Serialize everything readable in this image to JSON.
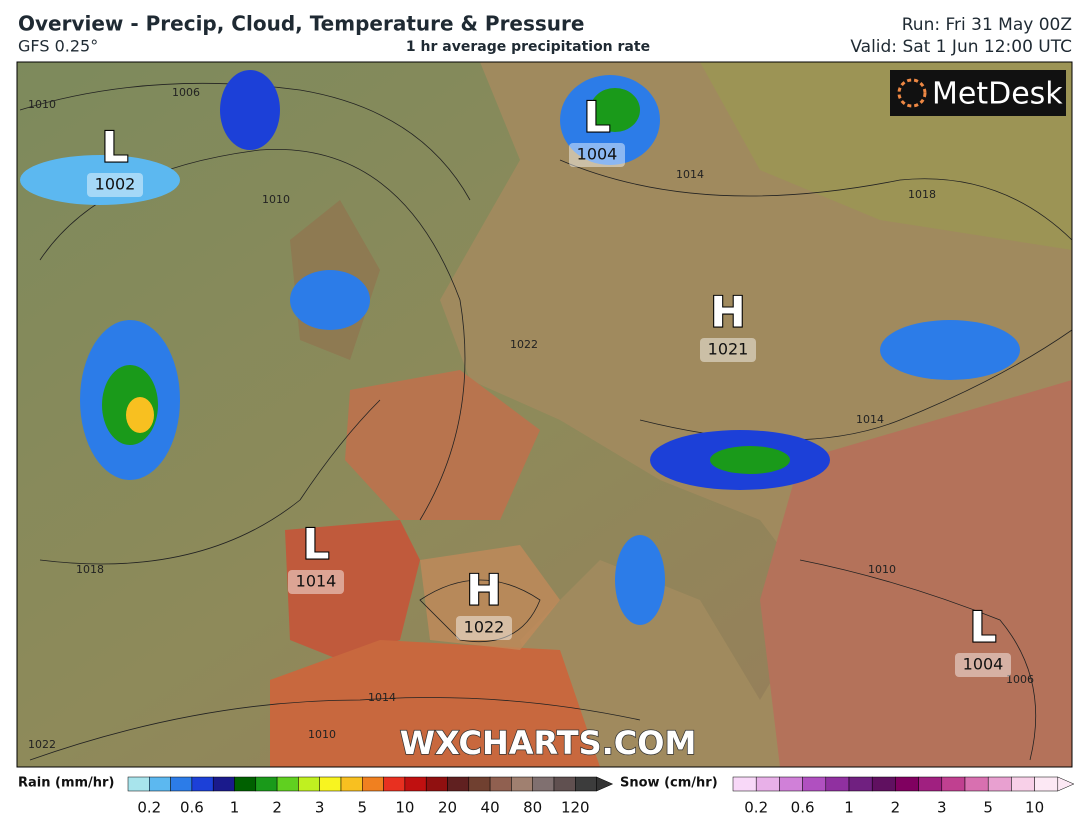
{
  "header": {
    "title": "Overview - Precip, Cloud, Temperature & Pressure",
    "model": "GFS 0.25°",
    "subtitle": "1 hr average precipitation rate",
    "run": "Run: Fri 31 May 00Z",
    "valid": "Valid: Sat 1 Jun 12:00 UTC"
  },
  "logo": "MetDesk",
  "watermark": "WXCHARTS.COM",
  "pressure_systems": [
    {
      "letter": "L",
      "value": 1002
    },
    {
      "letter": "L",
      "value": 1004
    },
    {
      "letter": "H",
      "value": 1021
    },
    {
      "letter": "L",
      "value": 1014
    },
    {
      "letter": "H",
      "value": 1022
    },
    {
      "letter": "L",
      "value": 1004
    }
  ],
  "isobar_labels": [
    "1010",
    "1006",
    "1010",
    "1014",
    "1018",
    "1022",
    "1014",
    "1010",
    "1006",
    "1018",
    "1014",
    "1010",
    "1022"
  ],
  "rain_legend": {
    "label": "Rain (mm/hr)",
    "ticks": [
      0.2,
      0.6,
      1,
      2,
      3,
      5,
      10,
      20,
      40,
      80,
      120
    ],
    "colors": [
      "#a8e4ec",
      "#5cb8f0",
      "#2c7ce8",
      "#1c40d8",
      "#1a1a8c",
      "#006000",
      "#1a9a1a",
      "#60d020",
      "#c0f020",
      "#f8f420",
      "#f8c020",
      "#f08020",
      "#e83020",
      "#c01010",
      "#901010",
      "#602020",
      "#704030",
      "#906050",
      "#a08070",
      "#807070",
      "#605050",
      "#3c3c3c"
    ]
  },
  "snow_legend": {
    "label": "Snow (cm/hr)",
    "ticks": [
      0.2,
      0.6,
      1,
      2,
      3,
      5,
      10
    ],
    "colors": [
      "#f8d8f8",
      "#e8b0e8",
      "#d080d8",
      "#b050c0",
      "#9030a0",
      "#702080",
      "#601060",
      "#800060",
      "#a02080",
      "#c04090",
      "#d870b0",
      "#e8a0d0",
      "#f8d0e8",
      "#fce8f4"
    ]
  }
}
